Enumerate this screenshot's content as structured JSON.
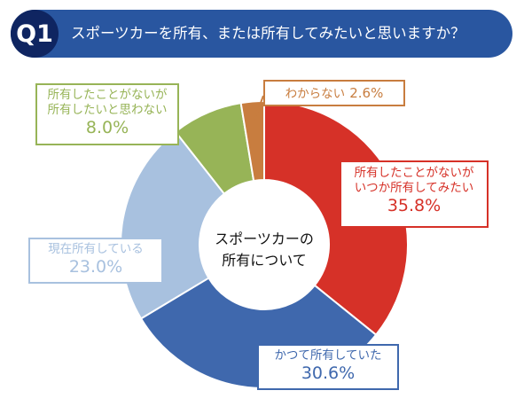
{
  "header": {
    "badge": "Q1",
    "question": "スポーツカーを所有、または所有してみたいと思いますか？"
  },
  "chart_data": {
    "type": "pie",
    "center_label_line1": "スポーツカーの",
    "center_label_line2": "所有について",
    "slices": [
      {
        "label_line1": "所有したことがないが",
        "label_line2": "いつか所有してみたい",
        "value": 35.8,
        "value_text": "35.8%",
        "color": "#d63128"
      },
      {
        "label_line1": "かつて所有していた",
        "label_line2": "",
        "value": 30.6,
        "value_text": "30.6%",
        "color": "#3f68ad"
      },
      {
        "label_line1": "現在所有している",
        "label_line2": "",
        "value": 23.0,
        "value_text": "23.0%",
        "color": "#a8c1df"
      },
      {
        "label_line1": "所有したことがないが",
        "label_line2": "所有したいと思わない",
        "value": 8.0,
        "value_text": "8.0%",
        "color": "#97b457"
      },
      {
        "label_line1": "わからない",
        "label_line2": "",
        "value": 2.6,
        "value_text": "2.6%",
        "color": "#c87d3f"
      }
    ]
  }
}
